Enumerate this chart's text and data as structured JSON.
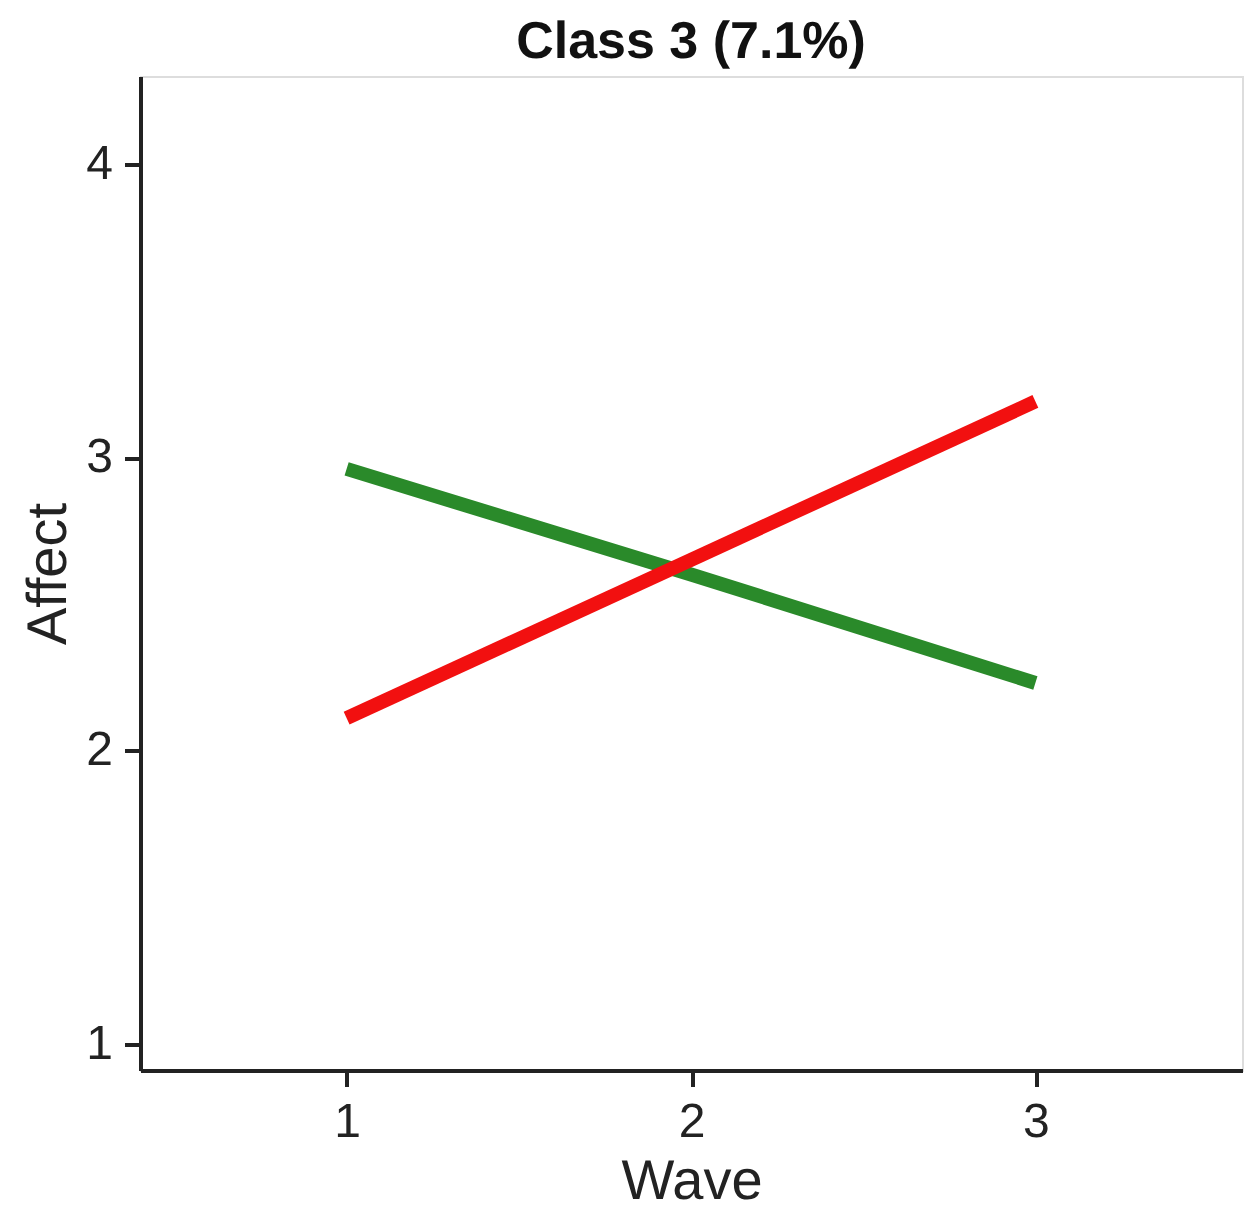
{
  "chart_data": {
    "type": "line",
    "title": "Class 3 (7.1%)",
    "xlabel": "Wave",
    "ylabel": "Affect",
    "x": [
      1,
      2,
      3
    ],
    "series": [
      {
        "color": "#2a8a2a",
        "values": [
          2.96,
          2.6,
          2.23
        ]
      },
      {
        "color": "#f21010",
        "values": [
          2.11,
          2.65,
          3.19
        ]
      }
    ],
    "xlim": [
      0.4,
      3.6
    ],
    "xticks": [
      1,
      2,
      3
    ],
    "ylim": [
      0.91,
      4.3
    ],
    "yticks": [
      1,
      2,
      3,
      4
    ],
    "grid": false,
    "legend": false,
    "marker": "none",
    "line_style": "solid"
  }
}
